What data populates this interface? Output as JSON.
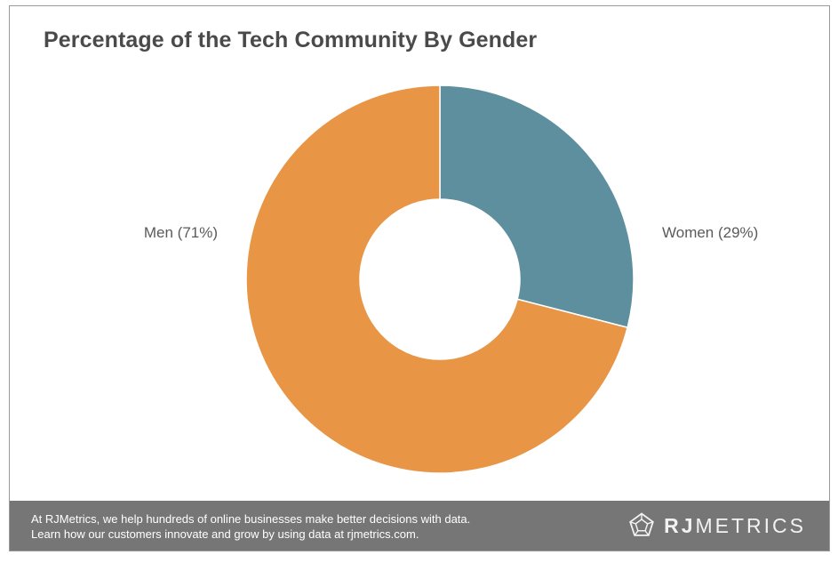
{
  "chart_data": {
    "type": "pie",
    "title": "Percentage of the Tech Community By Gender",
    "donut": true,
    "categories": [
      "Women",
      "Men"
    ],
    "values": [
      29,
      71
    ],
    "labels": [
      "Women (29%)",
      "Men (71%)"
    ],
    "colors": [
      "#5e8f9e",
      "#e89545"
    ]
  },
  "footer": {
    "line1": "At RJMetrics, we help hundreds of online businesses make better decisions with data.",
    "line2": "Learn how our customers innovate and grow by using data at rjmetrics.com.",
    "brand_bold": "RJ",
    "brand_rest": "METRICS",
    "brand_icon": "dodecahedron-logo-icon"
  }
}
